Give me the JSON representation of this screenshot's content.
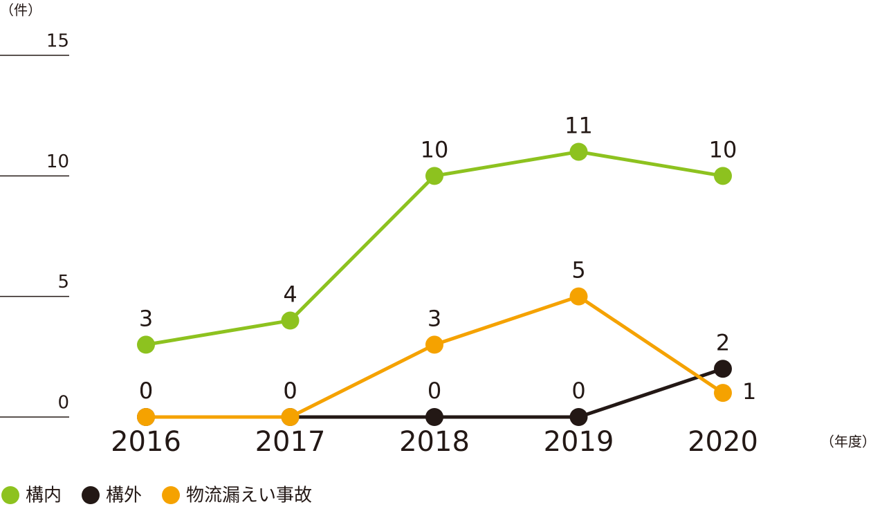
{
  "chart_data": {
    "type": "line",
    "y_unit": "（件）",
    "x_unit": "（年度）",
    "categories": [
      "2016",
      "2017",
      "2018",
      "2019",
      "2020"
    ],
    "series": [
      {
        "name": "構内",
        "color": "#8dc21f",
        "values": [
          3,
          4,
          10,
          11,
          10
        ]
      },
      {
        "name": "構外",
        "color": "#231815",
        "values": [
          0,
          0,
          0,
          0,
          2
        ]
      },
      {
        "name": "物流漏えい事故",
        "color": "#f5a200",
        "values": [
          0,
          0,
          3,
          5,
          1
        ]
      }
    ],
    "ylim": [
      0,
      15
    ],
    "yticks": [
      0,
      5,
      10,
      15
    ]
  }
}
